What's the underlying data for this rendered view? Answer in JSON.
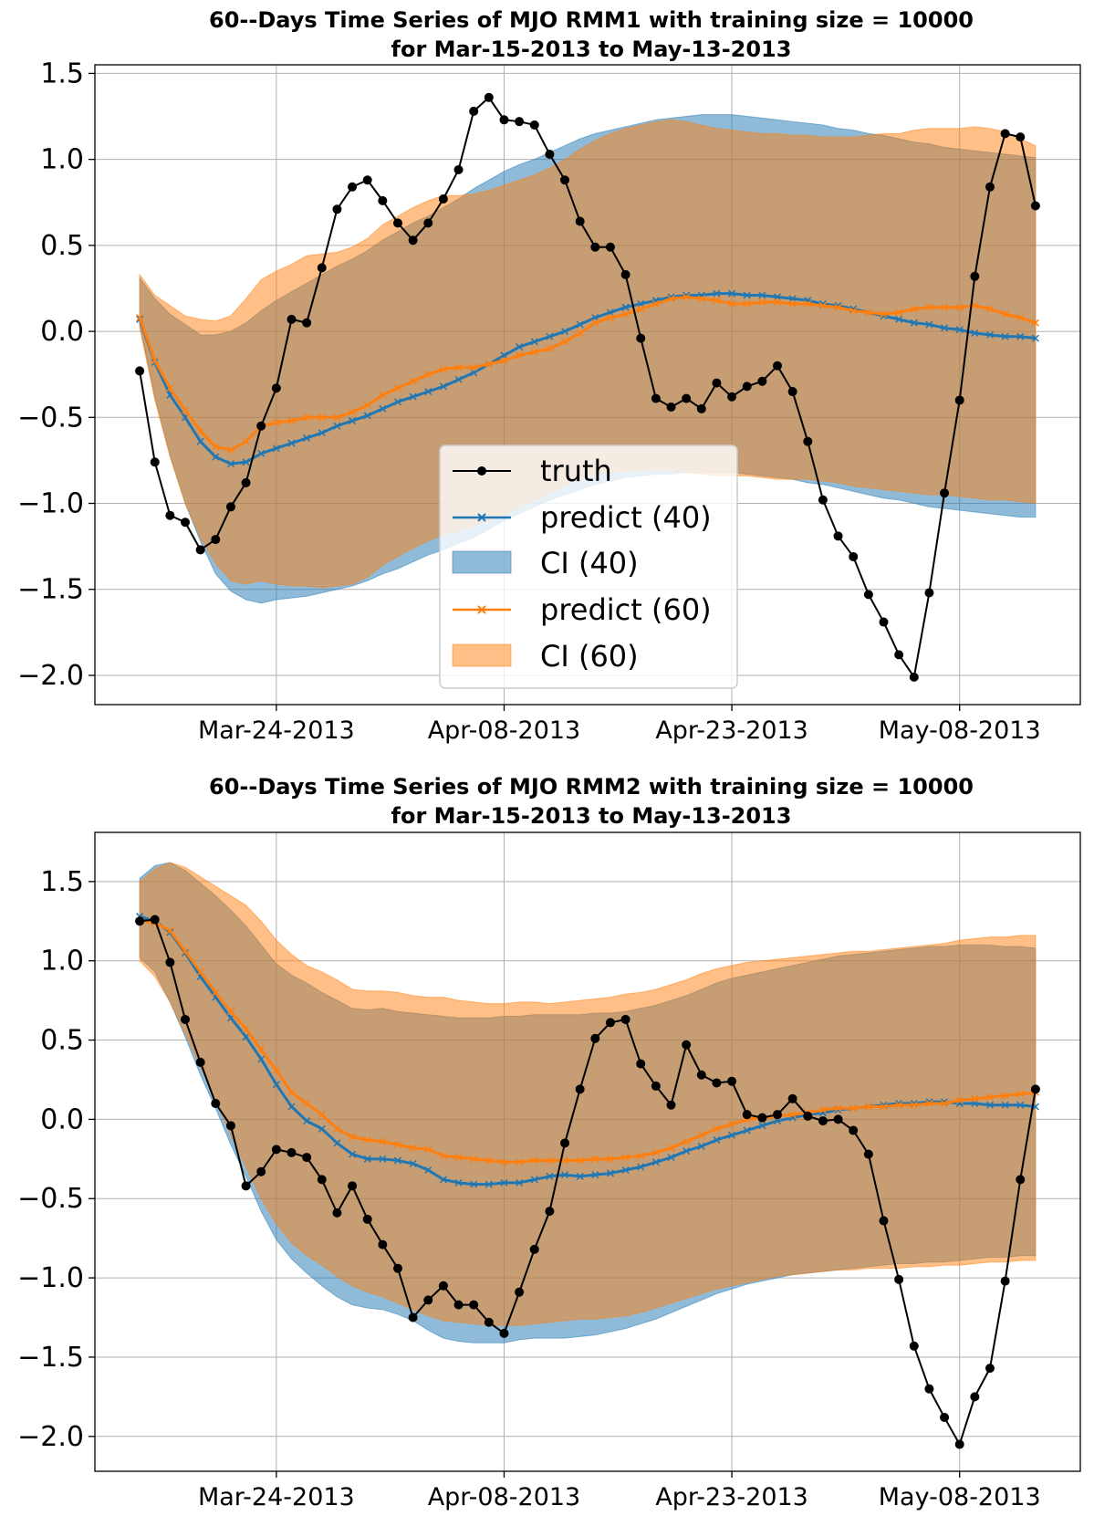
{
  "chart_data": [
    {
      "type": "line",
      "title_line1": "60--Days Time Series of MJO RMM1 with training size = 10000",
      "title_line2": "for Mar-15-2013 to May-13-2013",
      "x_start": "Mar-15-2013",
      "x_end": "May-13-2013",
      "xticks": [
        "Mar-24-2013",
        "Apr-08-2013",
        "Apr-23-2013",
        "May-08-2013"
      ],
      "yticks": [
        -2.0,
        -1.5,
        -1.0,
        -0.5,
        0.0,
        0.5,
        1.0,
        1.5
      ],
      "ytick_labels": [
        "−2.0",
        "−1.5",
        "−1.0",
        "−0.5",
        "0.0",
        "0.5",
        "1.0",
        "1.5"
      ],
      "ylim": [
        -2.17,
        1.55
      ],
      "grid": true,
      "legend": {
        "placement": "lower-center",
        "entries": [
          "truth",
          "predict (40)",
          "CI (40)",
          "predict (60)",
          "CI (60)"
        ]
      },
      "colors": {
        "truth": "#000000",
        "predict40": "#1f77b4",
        "predict60": "#ff7f0e"
      },
      "series": [
        {
          "name": "truth",
          "values": [
            -0.23,
            -0.76,
            -1.07,
            -1.11,
            -1.27,
            -1.21,
            -1.02,
            -0.88,
            -0.55,
            -0.33,
            0.07,
            0.05,
            0.37,
            0.71,
            0.84,
            0.88,
            0.76,
            0.63,
            0.53,
            0.63,
            0.77,
            0.94,
            1.28,
            1.36,
            1.23,
            1.22,
            1.2,
            1.03,
            0.88,
            0.64,
            0.49,
            0.49,
            0.33,
            -0.04,
            -0.39,
            -0.44,
            -0.39,
            -0.45,
            -0.3,
            -0.38,
            -0.32,
            -0.29,
            -0.2,
            -0.35,
            -0.64,
            -0.98,
            -1.19,
            -1.31,
            -1.53,
            -1.69,
            -1.88,
            -2.01,
            -1.52,
            -0.94,
            -0.4,
            0.32,
            0.84,
            1.15,
            1.13,
            0.73
          ]
        },
        {
          "name": "predict (40)",
          "values": [
            0.07,
            -0.18,
            -0.37,
            -0.5,
            -0.64,
            -0.73,
            -0.77,
            -0.76,
            -0.71,
            -0.68,
            -0.65,
            -0.62,
            -0.59,
            -0.55,
            -0.52,
            -0.49,
            -0.45,
            -0.41,
            -0.38,
            -0.35,
            -0.32,
            -0.28,
            -0.24,
            -0.19,
            -0.14,
            -0.09,
            -0.06,
            -0.03,
            0.0,
            0.04,
            0.08,
            0.11,
            0.14,
            0.16,
            0.18,
            0.2,
            0.21,
            0.21,
            0.22,
            0.22,
            0.21,
            0.21,
            0.2,
            0.19,
            0.18,
            0.16,
            0.15,
            0.13,
            0.11,
            0.09,
            0.07,
            0.05,
            0.04,
            0.02,
            0.01,
            -0.01,
            -0.02,
            -0.03,
            -0.03,
            -0.04
          ]
        },
        {
          "name": "predict (60)",
          "values": [
            0.08,
            -0.17,
            -0.33,
            -0.46,
            -0.58,
            -0.67,
            -0.69,
            -0.64,
            -0.55,
            -0.53,
            -0.52,
            -0.5,
            -0.5,
            -0.5,
            -0.47,
            -0.43,
            -0.37,
            -0.33,
            -0.29,
            -0.25,
            -0.22,
            -0.21,
            -0.21,
            -0.19,
            -0.17,
            -0.14,
            -0.12,
            -0.1,
            -0.06,
            -0.01,
            0.05,
            0.08,
            0.1,
            0.13,
            0.16,
            0.19,
            0.2,
            0.19,
            0.18,
            0.16,
            0.16,
            0.17,
            0.17,
            0.16,
            0.16,
            0.15,
            0.14,
            0.12,
            0.11,
            0.1,
            0.11,
            0.13,
            0.14,
            0.14,
            0.14,
            0.15,
            0.13,
            0.1,
            0.08,
            0.05
          ]
        }
      ],
      "bands": [
        {
          "name": "CI (40)",
          "upper": [
            0.31,
            0.19,
            0.1,
            0.04,
            -0.02,
            -0.02,
            0.0,
            0.05,
            0.12,
            0.18,
            0.23,
            0.28,
            0.33,
            0.38,
            0.42,
            0.47,
            0.53,
            0.58,
            0.63,
            0.67,
            0.72,
            0.77,
            0.83,
            0.88,
            0.93,
            0.97,
            1.0,
            1.04,
            1.08,
            1.12,
            1.15,
            1.17,
            1.19,
            1.21,
            1.23,
            1.24,
            1.25,
            1.26,
            1.26,
            1.26,
            1.25,
            1.24,
            1.23,
            1.22,
            1.21,
            1.2,
            1.18,
            1.17,
            1.15,
            1.14,
            1.12,
            1.1,
            1.09,
            1.07,
            1.06,
            1.05,
            1.04,
            1.03,
            1.02,
            1.01
          ],
          "lower": [
            0.04,
            -0.38,
            -0.72,
            -1.0,
            -1.22,
            -1.41,
            -1.51,
            -1.56,
            -1.58,
            -1.56,
            -1.55,
            -1.54,
            -1.52,
            -1.5,
            -1.48,
            -1.45,
            -1.41,
            -1.38,
            -1.34,
            -1.3,
            -1.27,
            -1.23,
            -1.2,
            -1.15,
            -1.1,
            -1.06,
            -1.02,
            -0.98,
            -0.95,
            -0.92,
            -0.89,
            -0.87,
            -0.85,
            -0.84,
            -0.83,
            -0.83,
            -0.82,
            -0.82,
            -0.82,
            -0.82,
            -0.83,
            -0.84,
            -0.85,
            -0.86,
            -0.88,
            -0.89,
            -0.91,
            -0.93,
            -0.95,
            -0.97,
            -0.98,
            -1.0,
            -1.02,
            -1.03,
            -1.04,
            -1.05,
            -1.06,
            -1.07,
            -1.08,
            -1.08
          ]
        },
        {
          "name": "CI (60)",
          "upper": [
            0.33,
            0.21,
            0.15,
            0.09,
            0.07,
            0.06,
            0.09,
            0.19,
            0.3,
            0.35,
            0.39,
            0.44,
            0.45,
            0.46,
            0.49,
            0.54,
            0.62,
            0.67,
            0.72,
            0.76,
            0.79,
            0.79,
            0.8,
            0.82,
            0.85,
            0.88,
            0.91,
            0.95,
            1.0,
            1.06,
            1.11,
            1.15,
            1.18,
            1.2,
            1.22,
            1.23,
            1.22,
            1.2,
            1.18,
            1.17,
            1.16,
            1.15,
            1.15,
            1.14,
            1.14,
            1.13,
            1.13,
            1.13,
            1.14,
            1.15,
            1.15,
            1.17,
            1.18,
            1.18,
            1.18,
            1.19,
            1.18,
            1.16,
            1.12,
            1.08
          ],
          "lower": [
            0.02,
            -0.4,
            -0.73,
            -1.0,
            -1.2,
            -1.35,
            -1.45,
            -1.47,
            -1.45,
            -1.47,
            -1.48,
            -1.48,
            -1.49,
            -1.48,
            -1.47,
            -1.43,
            -1.36,
            -1.31,
            -1.26,
            -1.22,
            -1.18,
            -1.16,
            -1.13,
            -1.1,
            -1.07,
            -1.02,
            -0.98,
            -0.94,
            -0.9,
            -0.86,
            -0.83,
            -0.82,
            -0.81,
            -0.81,
            -0.81,
            -0.81,
            -0.82,
            -0.83,
            -0.84,
            -0.84,
            -0.84,
            -0.85,
            -0.86,
            -0.86,
            -0.86,
            -0.87,
            -0.88,
            -0.9,
            -0.91,
            -0.92,
            -0.93,
            -0.94,
            -0.95,
            -0.95,
            -0.96,
            -0.97,
            -0.98,
            -0.98,
            -0.99,
            -1.0
          ]
        }
      ]
    },
    {
      "type": "line",
      "title_line1": "60--Days Time Series of MJO RMM2 with training size = 10000",
      "title_line2": "for Mar-15-2013 to May-13-2013",
      "x_start": "Mar-15-2013",
      "x_end": "May-13-2013",
      "xticks": [
        "Mar-24-2013",
        "Apr-08-2013",
        "Apr-23-2013",
        "May-08-2013"
      ],
      "yticks": [
        -2.0,
        -1.5,
        -1.0,
        -0.5,
        0.0,
        0.5,
        1.0,
        1.5
      ],
      "ytick_labels": [
        "−2.0",
        "−1.5",
        "−1.0",
        "−0.5",
        "0.0",
        "0.5",
        "1.0",
        "1.5"
      ],
      "ylim": [
        -2.22,
        1.81
      ],
      "grid": true,
      "legend": null,
      "colors": {
        "truth": "#000000",
        "predict40": "#1f77b4",
        "predict60": "#ff7f0e"
      },
      "series": [
        {
          "name": "truth",
          "values": [
            1.25,
            1.26,
            0.99,
            0.63,
            0.36,
            0.1,
            -0.04,
            -0.42,
            -0.33,
            -0.19,
            -0.21,
            -0.24,
            -0.38,
            -0.59,
            -0.42,
            -0.63,
            -0.79,
            -0.94,
            -1.25,
            -1.14,
            -1.05,
            -1.17,
            -1.17,
            -1.28,
            -1.35,
            -1.09,
            -0.82,
            -0.58,
            -0.15,
            0.19,
            0.51,
            0.61,
            0.63,
            0.35,
            0.21,
            0.09,
            0.47,
            0.28,
            0.23,
            0.24,
            0.03,
            0.01,
            0.03,
            0.13,
            0.02,
            -0.01,
            0.0,
            -0.07,
            -0.22,
            -0.64,
            -1.01,
            -1.43,
            -1.7,
            -1.88,
            -2.05,
            -1.75,
            -1.57,
            -1.02,
            -0.38,
            0.19
          ]
        },
        {
          "name": "predict (40)",
          "values": [
            1.28,
            1.25,
            1.18,
            1.05,
            0.9,
            0.77,
            0.64,
            0.52,
            0.38,
            0.22,
            0.08,
            -0.01,
            -0.06,
            -0.15,
            -0.22,
            -0.25,
            -0.25,
            -0.26,
            -0.28,
            -0.32,
            -0.38,
            -0.4,
            -0.41,
            -0.41,
            -0.4,
            -0.4,
            -0.38,
            -0.36,
            -0.35,
            -0.36,
            -0.35,
            -0.34,
            -0.32,
            -0.3,
            -0.27,
            -0.24,
            -0.2,
            -0.17,
            -0.13,
            -0.1,
            -0.07,
            -0.04,
            -0.01,
            0.01,
            0.03,
            0.04,
            0.06,
            0.07,
            0.08,
            0.09,
            0.1,
            0.1,
            0.11,
            0.11,
            0.1,
            0.1,
            0.09,
            0.09,
            0.09,
            0.08
          ]
        },
        {
          "name": "predict (60)",
          "values": [
            1.25,
            1.24,
            1.19,
            1.06,
            0.93,
            0.8,
            0.68,
            0.57,
            0.44,
            0.31,
            0.17,
            0.1,
            0.03,
            -0.06,
            -0.11,
            -0.13,
            -0.14,
            -0.16,
            -0.18,
            -0.19,
            -0.23,
            -0.24,
            -0.25,
            -0.26,
            -0.27,
            -0.27,
            -0.26,
            -0.26,
            -0.26,
            -0.26,
            -0.25,
            -0.25,
            -0.24,
            -0.23,
            -0.21,
            -0.18,
            -0.14,
            -0.1,
            -0.06,
            -0.03,
            0.0,
            0.01,
            0.02,
            0.03,
            0.04,
            0.06,
            0.07,
            0.07,
            0.08,
            0.08,
            0.09,
            0.09,
            0.1,
            0.1,
            0.12,
            0.13,
            0.14,
            0.15,
            0.16,
            0.17
          ]
        }
      ],
      "bands": [
        {
          "name": "CI (40)",
          "upper": [
            1.52,
            1.6,
            1.62,
            1.57,
            1.49,
            1.41,
            1.32,
            1.22,
            1.1,
            0.98,
            0.91,
            0.86,
            0.8,
            0.75,
            0.7,
            0.69,
            0.7,
            0.68,
            0.67,
            0.66,
            0.65,
            0.64,
            0.64,
            0.64,
            0.65,
            0.65,
            0.66,
            0.66,
            0.66,
            0.66,
            0.67,
            0.67,
            0.68,
            0.7,
            0.72,
            0.75,
            0.78,
            0.82,
            0.86,
            0.89,
            0.91,
            0.93,
            0.95,
            0.97,
            0.99,
            1.01,
            1.03,
            1.04,
            1.05,
            1.06,
            1.07,
            1.08,
            1.09,
            1.09,
            1.1,
            1.1,
            1.1,
            1.09,
            1.09,
            1.08
          ],
          "lower": [
            1.02,
            0.93,
            0.74,
            0.52,
            0.28,
            0.07,
            -0.16,
            -0.36,
            -0.58,
            -0.76,
            -0.88,
            -0.97,
            -1.05,
            -1.12,
            -1.17,
            -1.19,
            -1.2,
            -1.23,
            -1.27,
            -1.33,
            -1.38,
            -1.4,
            -1.41,
            -1.41,
            -1.41,
            -1.39,
            -1.38,
            -1.38,
            -1.38,
            -1.37,
            -1.36,
            -1.34,
            -1.32,
            -1.29,
            -1.26,
            -1.22,
            -1.18,
            -1.14,
            -1.1,
            -1.07,
            -1.04,
            -1.02,
            -1.0,
            -0.98,
            -0.97,
            -0.96,
            -0.95,
            -0.94,
            -0.93,
            -0.92,
            -0.91,
            -0.91,
            -0.9,
            -0.9,
            -0.89,
            -0.88,
            -0.87,
            -0.87,
            -0.86,
            -0.86
          ]
        },
        {
          "name": "CI (60)",
          "upper": [
            1.5,
            1.58,
            1.62,
            1.59,
            1.53,
            1.47,
            1.41,
            1.35,
            1.25,
            1.13,
            1.04,
            0.97,
            0.93,
            0.88,
            0.82,
            0.81,
            0.81,
            0.8,
            0.78,
            0.77,
            0.77,
            0.75,
            0.74,
            0.73,
            0.73,
            0.74,
            0.74,
            0.73,
            0.74,
            0.75,
            0.76,
            0.77,
            0.79,
            0.8,
            0.82,
            0.85,
            0.88,
            0.92,
            0.95,
            0.97,
            0.99,
            1.0,
            1.01,
            1.02,
            1.03,
            1.04,
            1.05,
            1.06,
            1.06,
            1.07,
            1.08,
            1.09,
            1.1,
            1.11,
            1.13,
            1.14,
            1.15,
            1.15,
            1.16,
            1.16
          ],
          "lower": [
            1.0,
            0.9,
            0.74,
            0.54,
            0.33,
            0.12,
            -0.1,
            -0.3,
            -0.5,
            -0.66,
            -0.78,
            -0.86,
            -0.92,
            -0.99,
            -1.05,
            -1.09,
            -1.12,
            -1.16,
            -1.2,
            -1.24,
            -1.27,
            -1.28,
            -1.29,
            -1.3,
            -1.3,
            -1.3,
            -1.29,
            -1.28,
            -1.27,
            -1.26,
            -1.26,
            -1.25,
            -1.24,
            -1.22,
            -1.19,
            -1.16,
            -1.13,
            -1.1,
            -1.07,
            -1.05,
            -1.03,
            -1.01,
            -0.99,
            -0.98,
            -0.97,
            -0.96,
            -0.95,
            -0.95,
            -0.94,
            -0.94,
            -0.94,
            -0.93,
            -0.93,
            -0.92,
            -0.92,
            -0.91,
            -0.9,
            -0.9,
            -0.89,
            -0.89
          ]
        }
      ]
    }
  ]
}
